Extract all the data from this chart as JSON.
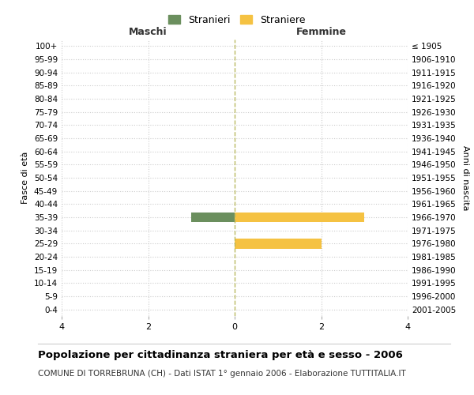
{
  "age_groups": [
    "100+",
    "95-99",
    "90-94",
    "85-89",
    "80-84",
    "75-79",
    "70-74",
    "65-69",
    "60-64",
    "55-59",
    "50-54",
    "45-49",
    "40-44",
    "35-39",
    "30-34",
    "25-29",
    "20-24",
    "15-19",
    "10-14",
    "5-9",
    "0-4"
  ],
  "birth_years": [
    "≤ 1905",
    "1906-1910",
    "1911-1915",
    "1916-1920",
    "1921-1925",
    "1926-1930",
    "1931-1935",
    "1936-1940",
    "1941-1945",
    "1946-1950",
    "1951-1955",
    "1956-1960",
    "1961-1965",
    "1966-1970",
    "1971-1975",
    "1976-1980",
    "1981-1985",
    "1986-1990",
    "1991-1995",
    "1996-2000",
    "2001-2005"
  ],
  "maschi": [
    0,
    0,
    0,
    0,
    0,
    0,
    0,
    0,
    0,
    0,
    0,
    0,
    0,
    1,
    0,
    0,
    0,
    0,
    0,
    0,
    0
  ],
  "femmine": [
    0,
    0,
    0,
    0,
    0,
    0,
    0,
    0,
    0,
    0,
    0,
    0,
    0,
    3,
    0,
    2,
    0,
    0,
    0,
    0,
    0
  ],
  "maschi_color": "#6b8f5e",
  "femmine_color": "#f5c242",
  "title": "Popolazione per cittadinanza straniera per età e sesso - 2006",
  "subtitle": "COMUNE DI TORREBRUNA (CH) - Dati ISTAT 1° gennaio 2006 - Elaborazione TUTTITALIA.IT",
  "left_label": "Maschi",
  "right_label": "Femmine",
  "y_left_label": "Fasce di età",
  "y_right_label": "Anni di nascita",
  "legend_stranieri": "Stranieri",
  "legend_straniere": "Straniere",
  "xlim": 4,
  "background_color": "#ffffff",
  "grid_color": "#cccccc",
  "bar_height": 0.75,
  "dashed_line_color": "#b8b860"
}
